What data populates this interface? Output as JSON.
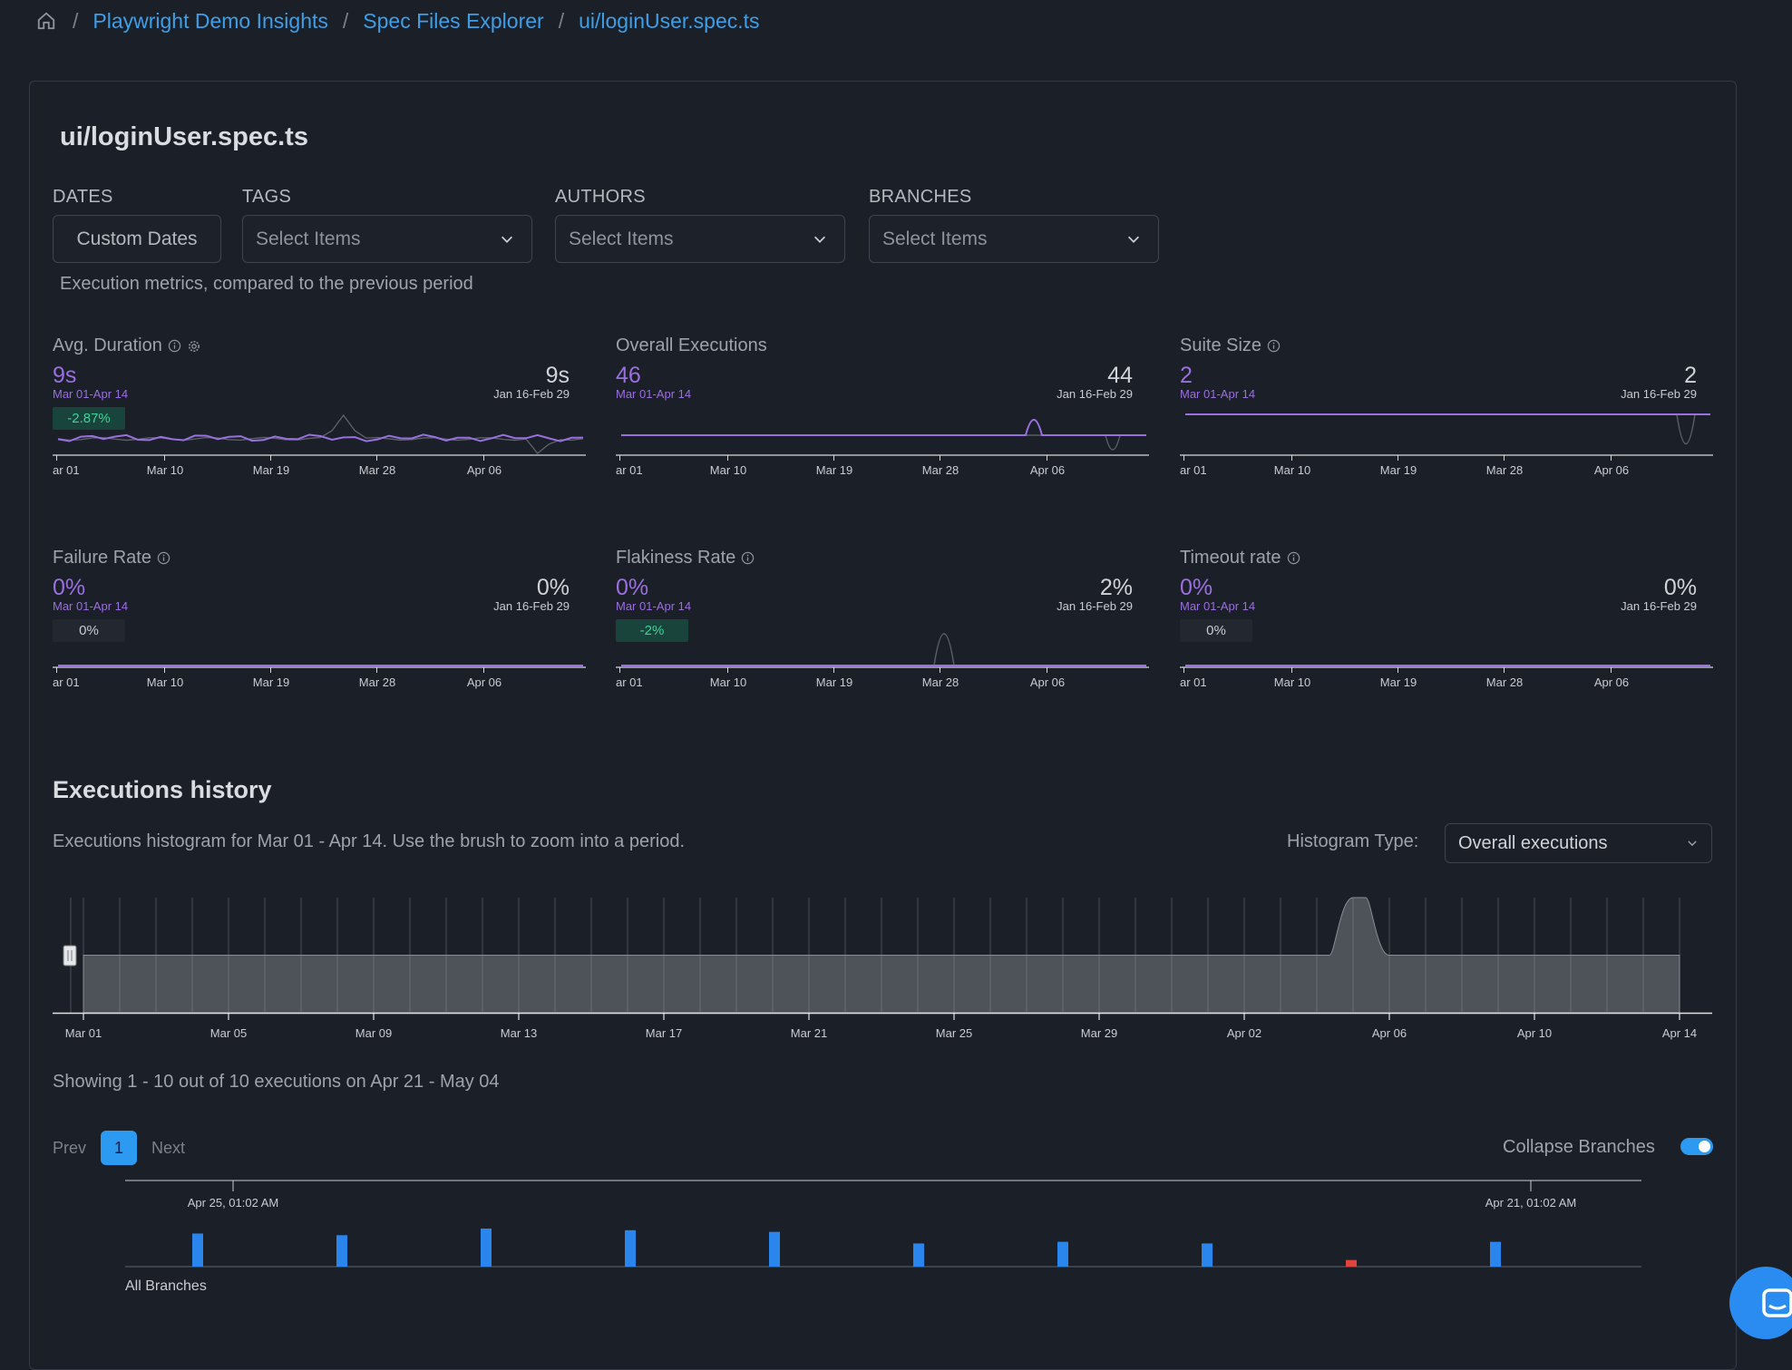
{
  "breadcrumb": {
    "items": [
      "Playwright Demo Insights",
      "Spec Files Explorer",
      "ui/loginUser.spec.ts"
    ],
    "separator": "/"
  },
  "page_title": "ui/loginUser.spec.ts",
  "filters": {
    "dates_label": "DATES",
    "dates_button": "Custom Dates",
    "tags_label": "TAGS",
    "tags_placeholder": "Select Items",
    "authors_label": "AUTHORS",
    "authors_placeholder": "Select Items",
    "branches_label": "BRANCHES",
    "branches_placeholder": "Select Items"
  },
  "metrics_subtitle": "Execution metrics, compared to the previous period",
  "metric_axis_ticks": [
    "ar 01",
    "Mar 10",
    "Mar 19",
    "Mar 28",
    "Apr 06"
  ],
  "metrics": [
    {
      "title": "Avg. Duration",
      "value": "9s",
      "period": "Mar 01-Apr 14",
      "prev_value": "9s",
      "prev_period": "Jan 16-Feb 29",
      "change": "-2.87%",
      "change_kind": "good",
      "info_icon": "info-icon",
      "settings_icon": "gear-icon"
    },
    {
      "title": "Overall Executions",
      "value": "46",
      "period": "Mar 01-Apr 14",
      "prev_value": "44",
      "prev_period": "Jan 16-Feb 29",
      "change": "",
      "change_kind": ""
    },
    {
      "title": "Suite Size",
      "value": "2",
      "period": "Mar 01-Apr 14",
      "prev_value": "2",
      "prev_period": "Jan 16-Feb 29",
      "change": "",
      "change_kind": "",
      "info_icon": "info-icon"
    },
    {
      "title": "Failure Rate",
      "value": "0%",
      "period": "Mar 01-Apr 14",
      "prev_value": "0%",
      "prev_period": "Jan 16-Feb 29",
      "change": "0%",
      "change_kind": "neutral",
      "info_icon": "info-icon"
    },
    {
      "title": "Flakiness Rate",
      "value": "0%",
      "period": "Mar 01-Apr 14",
      "prev_value": "2%",
      "prev_period": "Jan 16-Feb 29",
      "change": "-2%",
      "change_kind": "good",
      "info_icon": "info-icon"
    },
    {
      "title": "Timeout rate",
      "value": "0%",
      "period": "Mar 01-Apr 14",
      "prev_value": "0%",
      "prev_period": "Jan 16-Feb 29",
      "change": "0%",
      "change_kind": "neutral",
      "info_icon": "info-icon"
    }
  ],
  "history": {
    "title": "Executions history",
    "description": "Executions histogram for Mar 01 - Apr 14. Use the brush to zoom into a period.",
    "histogram_type_label": "Histogram Type:",
    "histogram_type_value": "Overall executions",
    "showing": "Showing 1 - 10 out of 10 executions on Apr 21 - May 04",
    "pagination": {
      "prev": "Prev",
      "page": "1",
      "next": "Next"
    },
    "collapse_branches_label": "Collapse Branches",
    "collapse_branches_on": true,
    "all_branches_label": "All Branches",
    "timeline_labels": [
      "Apr 25, 01:02 AM",
      "Apr 21, 01:02 AM"
    ]
  },
  "chart_data": {
    "type": "area",
    "categories": [
      "Mar 01",
      "Mar 02",
      "Mar 03",
      "Mar 04",
      "Mar 05",
      "Mar 06",
      "Mar 07",
      "Mar 08",
      "Mar 09",
      "Mar 10",
      "Mar 11",
      "Mar 12",
      "Mar 13",
      "Mar 14",
      "Mar 15",
      "Mar 16",
      "Mar 17",
      "Mar 18",
      "Mar 19",
      "Mar 20",
      "Mar 21",
      "Mar 22",
      "Mar 23",
      "Mar 24",
      "Mar 25",
      "Mar 26",
      "Mar 27",
      "Mar 28",
      "Mar 29",
      "Mar 30",
      "Mar 31",
      "Apr 01",
      "Apr 02",
      "Apr 03",
      "Apr 04",
      "Apr 05",
      "Apr 06",
      "Apr 07",
      "Apr 08",
      "Apr 09",
      "Apr 10",
      "Apr 11",
      "Apr 12",
      "Apr 13",
      "Apr 14"
    ],
    "values": [
      1,
      1,
      1,
      1,
      1,
      1,
      1,
      1,
      1,
      1,
      1,
      1,
      1,
      1,
      1,
      1,
      1,
      1,
      1,
      1,
      1,
      1,
      1,
      1,
      1,
      1,
      1,
      1,
      1,
      1,
      1,
      1,
      1,
      1,
      1,
      2,
      1,
      1,
      1,
      1,
      1,
      1,
      1,
      1,
      1
    ],
    "x_tick_labels": [
      "Mar 01",
      "Mar 05",
      "Mar 09",
      "Mar 13",
      "Mar 17",
      "Mar 21",
      "Mar 25",
      "Mar 29",
      "Apr 02",
      "Apr 06",
      "Apr 10",
      "Apr 14"
    ],
    "ylim": [
      0,
      2
    ],
    "grid": true
  },
  "executions_bars": {
    "values": [
      1,
      0.95,
      1.15,
      1.1,
      1.05,
      0.7,
      0.75,
      0.7,
      0.2,
      0.75
    ],
    "status": [
      "pass",
      "pass",
      "pass",
      "pass",
      "pass",
      "pass",
      "pass",
      "pass",
      "fail",
      "pass"
    ],
    "colors": {
      "pass": "#2a86ec",
      "fail": "#e0443f"
    }
  },
  "colors": {
    "accent": "#9a6fe0",
    "link": "#3d9fe8",
    "primary": "#2c9af0",
    "good": "#3fd49a"
  }
}
